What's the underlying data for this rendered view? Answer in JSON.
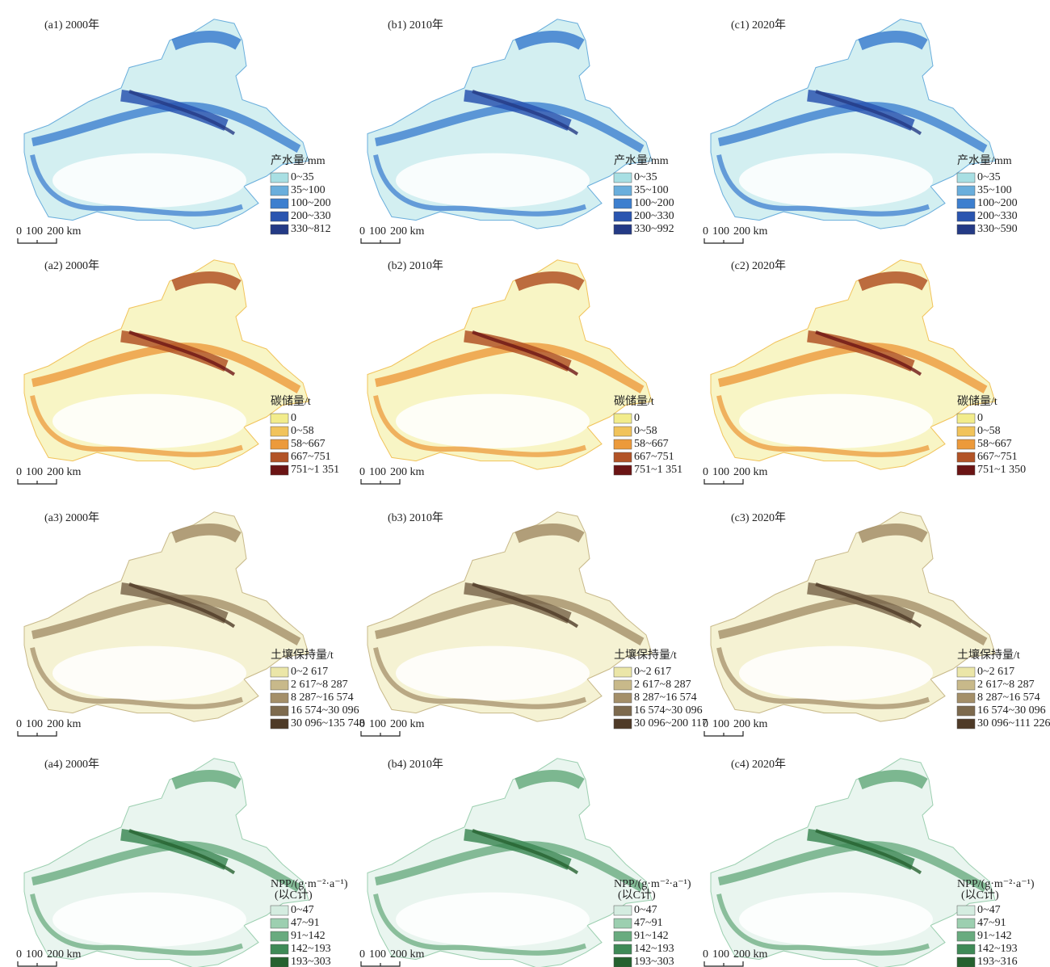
{
  "scale_bar_labels": [
    "0",
    "100",
    "200 km"
  ],
  "rows": [
    {
      "colors": [
        "#a8dfe3",
        "#6aaedc",
        "#3d7fcf",
        "#2a55b0",
        "#243a85"
      ],
      "panels": [
        {
          "label": "(a1) 2000年",
          "legend": {
            "title": "产水量/mm",
            "items": [
              "0~35",
              "35~100",
              "100~200",
              "200~330",
              "330~812"
            ]
          }
        },
        {
          "label": "(b1) 2010年",
          "legend": {
            "title": "产水量/mm",
            "items": [
              "0~35",
              "35~100",
              "100~200",
              "200~330",
              "330~992"
            ]
          }
        },
        {
          "label": "(c1) 2020年",
          "legend": {
            "title": "产水量/mm",
            "items": [
              "0~35",
              "35~100",
              "100~200",
              "200~330",
              "330~590"
            ]
          }
        }
      ]
    },
    {
      "colors": [
        "#f2ec8c",
        "#f1c35b",
        "#ec9a3b",
        "#b25326",
        "#6b1414"
      ],
      "panels": [
        {
          "label": "(a2) 2000年",
          "legend": {
            "title": "碳储量/t",
            "items": [
              "0",
              "0~58",
              "58~667",
              "667~751",
              "751~1 351"
            ]
          }
        },
        {
          "label": "(b2) 2010年",
          "legend": {
            "title": "碳储量/t",
            "items": [
              "0",
              "0~58",
              "58~667",
              "667~751",
              "751~1 351"
            ]
          }
        },
        {
          "label": "(c2) 2020年",
          "legend": {
            "title": "碳储量/t",
            "items": [
              "0",
              "0~58",
              "58~667",
              "667~751",
              "751~1 350"
            ]
          }
        }
      ]
    },
    {
      "colors": [
        "#ebe6a8",
        "#c8b98a",
        "#a48f69",
        "#7d6a4e",
        "#4e3a27"
      ],
      "panels": [
        {
          "label": "(a3) 2000年",
          "legend": {
            "title": "土壤保持量/t",
            "items": [
              "0~2 617",
              "2 617~8 287",
              "8 287~16 574",
              "16 574~30 096",
              "30 096~135 748"
            ]
          }
        },
        {
          "label": "(b3) 2010年",
          "legend": {
            "title": "土壤保持量/t",
            "items": [
              "0~2 617",
              "2 617~8 287",
              "8 287~16 574",
              "16 574~30 096",
              "30 096~200 117"
            ]
          }
        },
        {
          "label": "(c3) 2020年",
          "legend": {
            "title": "土壤保持量/t",
            "items": [
              "0~2 617",
              "2 617~8 287",
              "8 287~16 574",
              "16 574~30 096",
              "30 096~111 226"
            ]
          }
        }
      ]
    },
    {
      "colors": [
        "#d4ece0",
        "#9ccfb0",
        "#69ab7f",
        "#3f8a57",
        "#25622f"
      ],
      "panels": [
        {
          "label": "(a4) 2000年",
          "legend": {
            "title": "NPP/(g·m⁻²·a⁻¹)",
            "subtitle": "(以C计)",
            "items": [
              "0~47",
              "47~91",
              "91~142",
              "142~193",
              "193~303"
            ]
          }
        },
        {
          "label": "(b4) 2010年",
          "legend": {
            "title": "NPP/(g·m⁻²·a⁻¹)",
            "subtitle": "(以C计)",
            "items": [
              "0~47",
              "47~91",
              "91~142",
              "142~193",
              "193~303"
            ]
          }
        },
        {
          "label": "(c4) 2020年",
          "legend": {
            "title": "NPP/(g·m⁻²·a⁻¹)",
            "subtitle": "(以C计)",
            "items": [
              "0~47",
              "47~91",
              "91~142",
              "142~193",
              "193~316"
            ]
          }
        }
      ]
    }
  ]
}
